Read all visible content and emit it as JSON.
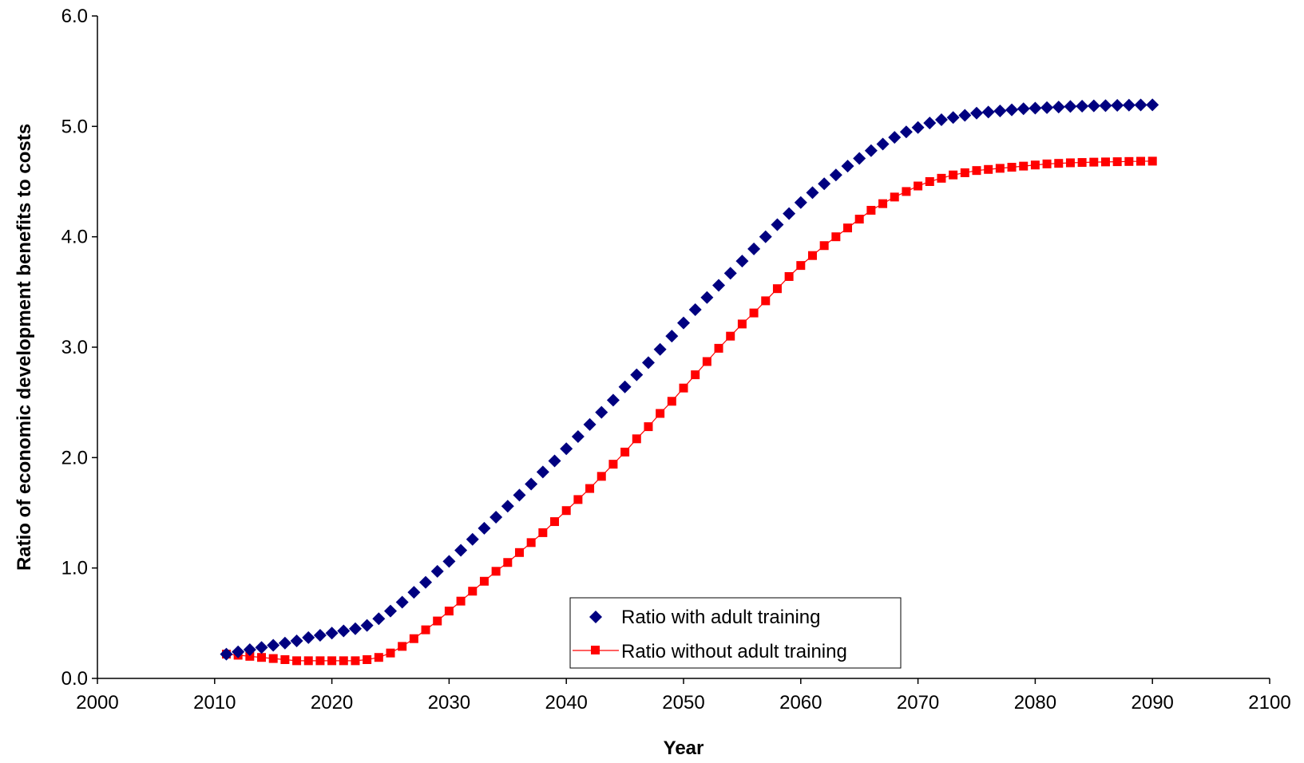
{
  "chart_data": {
    "type": "scatter",
    "title": "",
    "xlabel": "Year",
    "ylabel": "Ratio of economic development benefits to costs",
    "xlim": [
      2000,
      2100
    ],
    "ylim": [
      0.0,
      6.0
    ],
    "x_ticks": [
      "2000",
      "2010",
      "2020",
      "2030",
      "2040",
      "2050",
      "2060",
      "2070",
      "2080",
      "2090",
      "2100"
    ],
    "y_ticks": [
      "0.0",
      "1.0",
      "2.0",
      "3.0",
      "4.0",
      "5.0",
      "6.0"
    ],
    "grid": false,
    "legend_position": "bottom-center",
    "x": [
      2011,
      2012,
      2013,
      2014,
      2015,
      2016,
      2017,
      2018,
      2019,
      2020,
      2021,
      2022,
      2023,
      2024,
      2025,
      2026,
      2027,
      2028,
      2029,
      2030,
      2031,
      2032,
      2033,
      2034,
      2035,
      2036,
      2037,
      2038,
      2039,
      2040,
      2041,
      2042,
      2043,
      2044,
      2045,
      2046,
      2047,
      2048,
      2049,
      2050,
      2051,
      2052,
      2053,
      2054,
      2055,
      2056,
      2057,
      2058,
      2059,
      2060,
      2061,
      2062,
      2063,
      2064,
      2065,
      2066,
      2067,
      2068,
      2069,
      2070,
      2071,
      2072,
      2073,
      2074,
      2075,
      2076,
      2077,
      2078,
      2079,
      2080,
      2081,
      2082,
      2083,
      2084,
      2085,
      2086,
      2087,
      2088,
      2089,
      2090
    ],
    "series": [
      {
        "name": "Ratio with adult training",
        "color": "#000080",
        "marker": "diamond",
        "line": false,
        "values": [
          0.22,
          0.24,
          0.26,
          0.28,
          0.3,
          0.32,
          0.34,
          0.37,
          0.39,
          0.41,
          0.43,
          0.45,
          0.48,
          0.54,
          0.61,
          0.69,
          0.78,
          0.87,
          0.97,
          1.06,
          1.16,
          1.26,
          1.36,
          1.46,
          1.56,
          1.66,
          1.76,
          1.87,
          1.97,
          2.08,
          2.19,
          2.3,
          2.41,
          2.52,
          2.64,
          2.75,
          2.86,
          2.98,
          3.1,
          3.22,
          3.34,
          3.45,
          3.56,
          3.67,
          3.78,
          3.89,
          4.0,
          4.11,
          4.21,
          4.31,
          4.4,
          4.48,
          4.56,
          4.64,
          4.71,
          4.78,
          4.84,
          4.9,
          4.95,
          4.99,
          5.03,
          5.06,
          5.08,
          5.1,
          5.12,
          5.13,
          5.14,
          5.15,
          5.16,
          5.165,
          5.17,
          5.175,
          5.18,
          5.183,
          5.186,
          5.188,
          5.19,
          5.192,
          5.194,
          5.195
        ]
      },
      {
        "name": "Ratio without adult training",
        "color": "#ff0000",
        "marker": "square",
        "line": true,
        "values": [
          0.22,
          0.21,
          0.2,
          0.19,
          0.18,
          0.17,
          0.16,
          0.16,
          0.16,
          0.16,
          0.16,
          0.16,
          0.17,
          0.19,
          0.23,
          0.29,
          0.36,
          0.44,
          0.52,
          0.61,
          0.7,
          0.79,
          0.88,
          0.97,
          1.05,
          1.14,
          1.23,
          1.32,
          1.42,
          1.52,
          1.62,
          1.72,
          1.83,
          1.94,
          2.05,
          2.17,
          2.28,
          2.4,
          2.51,
          2.63,
          2.75,
          2.87,
          2.99,
          3.1,
          3.21,
          3.31,
          3.42,
          3.53,
          3.64,
          3.74,
          3.83,
          3.92,
          4.0,
          4.08,
          4.16,
          4.24,
          4.3,
          4.36,
          4.41,
          4.46,
          4.5,
          4.53,
          4.56,
          4.58,
          4.6,
          4.61,
          4.62,
          4.63,
          4.64,
          4.65,
          4.66,
          4.665,
          4.67,
          4.673,
          4.676,
          4.678,
          4.68,
          4.682,
          4.684,
          4.685
        ]
      }
    ]
  }
}
